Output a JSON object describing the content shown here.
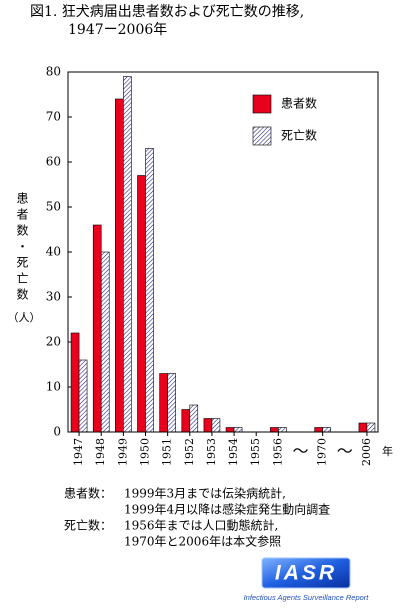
{
  "chart_data": {
    "type": "bar",
    "title": "図1.  狂犬病届出患者数および死亡数の推移,",
    "subtitle": "1947ー2006年",
    "y_label": "患者数・死亡数",
    "y_label_unit": "（人）",
    "x_unit": "年",
    "categories": [
      "1947",
      "1948",
      "1949",
      "1950",
      "1951",
      "1952",
      "1953",
      "1954",
      "1955",
      "1956",
      "〜",
      "1970",
      "〜",
      "2006"
    ],
    "series": [
      {
        "name": "患者数",
        "color": "#e8001c",
        "pattern": "solid",
        "values": [
          22,
          46,
          74,
          57,
          13,
          5,
          3,
          1,
          0,
          1,
          null,
          1,
          null,
          2
        ]
      },
      {
        "name": "死亡数",
        "color": "#1a1a80",
        "pattern": "hatch",
        "values": [
          16,
          40,
          79,
          63,
          13,
          6,
          3,
          1,
          0,
          1,
          null,
          1,
          null,
          2
        ]
      }
    ],
    "ylim": [
      0,
      80
    ],
    "yticks": [
      0,
      10,
      20,
      30,
      40,
      50,
      60,
      70,
      80
    ],
    "grid": false,
    "legend": "upper-right"
  },
  "notes": [
    {
      "label": "患者数：",
      "lines": [
        "1999年3月までは伝染病統計,",
        "1999年4月以降は感染症発生動向調査"
      ]
    },
    {
      "label": "死亡数：",
      "lines": [
        "1956年までは人口動態統計,",
        "1970年と2006年は本文参照"
      ]
    }
  ],
  "logo": {
    "title": "IASR",
    "subtitle": "Infectious Agents Surveillance Report"
  }
}
